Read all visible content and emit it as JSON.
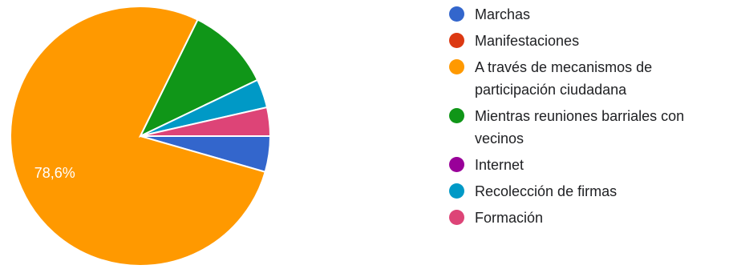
{
  "chart_data": {
    "type": "pie",
    "title": "",
    "categories": [
      "Marchas",
      "Manifestaciones",
      "A través de mecanismos de participación ciudadana",
      "Mientras reuniones barriales con vecinos",
      "Internet",
      "Recolección de firmas",
      "Formación"
    ],
    "values": [
      4.5,
      0,
      78.6,
      10.7,
      0,
      3.6,
      3.6
    ],
    "colors": [
      "#3366cc",
      "#dc3912",
      "#ff9900",
      "#109618",
      "#990099",
      "#0099c6",
      "#dd4477"
    ],
    "data_labels": [
      "",
      "",
      "78,6%",
      "",
      "",
      "",
      ""
    ],
    "legend": "right"
  },
  "legend_items": [
    {
      "lines": [
        "Marchas"
      ]
    },
    {
      "lines": [
        "Manifestaciones"
      ]
    },
    {
      "lines": [
        "A través de mecanismos de",
        "participación ciudadana"
      ]
    },
    {
      "lines": [
        "Mientras reuniones barriales con",
        "vecinos"
      ]
    },
    {
      "lines": [
        "Internet"
      ]
    },
    {
      "lines": [
        "Recolección de firmas"
      ]
    },
    {
      "lines": [
        "Formación"
      ]
    }
  ]
}
